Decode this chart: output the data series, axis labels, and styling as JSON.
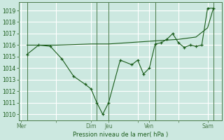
{
  "bg_color": "#cce8e0",
  "grid_color": "#ffffff",
  "line_color": "#1a5c1a",
  "ylim": [
    1009.5,
    1019.7
  ],
  "yticks": [
    1010,
    1011,
    1012,
    1013,
    1014,
    1015,
    1016,
    1017,
    1018,
    1019
  ],
  "xlabel": "Pression niveau de la mer( hPa )",
  "xtick_labels": [
    "Mer",
    "",
    "Dim",
    "Jeu",
    "",
    "Ven",
    "",
    "Sam"
  ],
  "xtick_positions": [
    0,
    3,
    6,
    7.5,
    10,
    11,
    13.5,
    16
  ],
  "vline_positions": [
    0.5,
    6.5,
    7.5,
    11.5,
    16.5
  ],
  "series1_x": [
    0.5,
    1.5,
    2.5,
    3.5,
    4.5,
    5.5,
    6.0,
    6.5,
    7.0,
    7.5,
    8.5,
    9.5,
    10.0,
    10.5,
    11.0,
    11.5,
    12.0,
    12.5,
    13.0,
    13.5,
    14.0,
    14.5,
    15.0,
    15.5,
    16.0,
    16.5
  ],
  "series1_y": [
    1015.2,
    1016.0,
    1015.9,
    1014.8,
    1013.3,
    1012.6,
    1012.2,
    1011.0,
    1010.0,
    1011.0,
    1014.7,
    1014.3,
    1014.7,
    1013.5,
    1014.0,
    1016.1,
    1016.2,
    1016.5,
    1017.0,
    1016.2,
    1015.8,
    1016.0,
    1015.9,
    1016.0,
    1019.2,
    1019.2
  ],
  "series2_x": [
    0.5,
    3.0,
    6.0,
    7.5,
    9.0,
    10.5,
    12.0,
    13.5,
    15.0,
    16.0,
    16.5
  ],
  "series2_y": [
    1016.0,
    1016.0,
    1016.1,
    1016.1,
    1016.2,
    1016.3,
    1016.4,
    1016.5,
    1016.7,
    1017.5,
    1019.2
  ],
  "xlim": [
    -0.2,
    17.2
  ]
}
